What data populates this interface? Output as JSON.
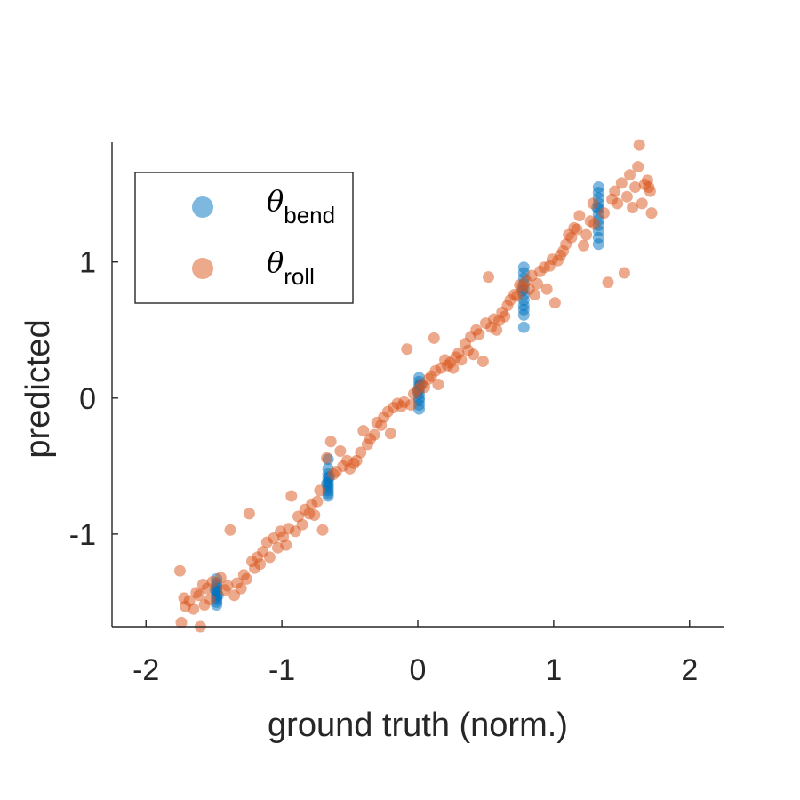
{
  "chart_data": {
    "type": "scatter",
    "title": "",
    "xlabel": "ground truth (norm.)",
    "ylabel": "predicted",
    "xlim": [
      -2.25,
      2.25
    ],
    "ylim": [
      -1.68,
      1.88
    ],
    "xticks": [
      -2,
      -1,
      0,
      1,
      2
    ],
    "xtick_labels": [
      "-2",
      "-1",
      "0",
      "1",
      "2"
    ],
    "yticks": [
      -1,
      0,
      1
    ],
    "ytick_labels": [
      "-1",
      "0",
      "1"
    ],
    "grid": false,
    "legend_position": "top-left",
    "series": [
      {
        "name": "θbend",
        "symbol": "θ",
        "subscript": "bend",
        "color": "#0072BD",
        "points": [
          [
            -1.48,
            -1.33
          ],
          [
            -1.48,
            -1.36
          ],
          [
            -1.48,
            -1.38
          ],
          [
            -1.48,
            -1.4
          ],
          [
            -1.48,
            -1.42
          ],
          [
            -1.48,
            -1.44
          ],
          [
            -1.48,
            -1.46
          ],
          [
            -1.48,
            -1.48
          ],
          [
            -1.48,
            -1.5
          ],
          [
            -1.48,
            -1.52
          ],
          [
            -1.49,
            -1.41
          ],
          [
            -1.47,
            -1.45
          ],
          [
            -0.66,
            -0.45
          ],
          [
            -0.66,
            -0.52
          ],
          [
            -0.66,
            -0.56
          ],
          [
            -0.66,
            -0.59
          ],
          [
            -0.66,
            -0.62
          ],
          [
            -0.66,
            -0.64
          ],
          [
            -0.66,
            -0.66
          ],
          [
            -0.66,
            -0.68
          ],
          [
            -0.66,
            -0.7
          ],
          [
            -0.66,
            -0.72
          ],
          [
            -0.65,
            -0.58
          ],
          [
            -0.67,
            -0.63
          ],
          [
            0.01,
            0.15
          ],
          [
            0.01,
            0.12
          ],
          [
            0.01,
            0.09
          ],
          [
            0.01,
            0.06
          ],
          [
            0.01,
            0.03
          ],
          [
            0.01,
            0.0
          ],
          [
            0.01,
            -0.02
          ],
          [
            0.01,
            -0.05
          ],
          [
            0.01,
            -0.08
          ],
          [
            0.0,
            0.05
          ],
          [
            0.02,
            0.1
          ],
          [
            0.78,
            0.96
          ],
          [
            0.78,
            0.92
          ],
          [
            0.78,
            0.88
          ],
          [
            0.78,
            0.84
          ],
          [
            0.78,
            0.8
          ],
          [
            0.78,
            0.76
          ],
          [
            0.78,
            0.72
          ],
          [
            0.78,
            0.68
          ],
          [
            0.78,
            0.65
          ],
          [
            0.78,
            0.61
          ],
          [
            0.78,
            0.52
          ],
          [
            0.77,
            0.79
          ],
          [
            1.33,
            1.55
          ],
          [
            1.33,
            1.51
          ],
          [
            1.33,
            1.47
          ],
          [
            1.33,
            1.43
          ],
          [
            1.33,
            1.39
          ],
          [
            1.33,
            1.35
          ],
          [
            1.33,
            1.31
          ],
          [
            1.33,
            1.27
          ],
          [
            1.33,
            1.23
          ],
          [
            1.33,
            1.18
          ],
          [
            1.33,
            1.13
          ],
          [
            1.32,
            1.4
          ]
        ]
      },
      {
        "name": "θroll",
        "symbol": "θ",
        "subscript": "roll",
        "color": "#D95319",
        "points": [
          [
            -1.75,
            -1.27
          ],
          [
            -1.74,
            -1.65
          ],
          [
            -1.72,
            -1.47
          ],
          [
            -1.71,
            -1.53
          ],
          [
            -1.68,
            -1.49
          ],
          [
            -1.65,
            -1.55
          ],
          [
            -1.63,
            -1.43
          ],
          [
            -1.61,
            -1.45
          ],
          [
            -1.6,
            -1.68
          ],
          [
            -1.58,
            -1.37
          ],
          [
            -1.57,
            -1.52
          ],
          [
            -1.55,
            -1.4
          ],
          [
            -1.53,
            -1.48
          ],
          [
            -1.51,
            -1.35
          ],
          [
            -1.45,
            -1.32
          ],
          [
            -1.42,
            -1.41
          ],
          [
            -1.4,
            -1.38
          ],
          [
            -1.38,
            -0.97
          ],
          [
            -1.35,
            -1.45
          ],
          [
            -1.33,
            -1.36
          ],
          [
            -1.3,
            -1.4
          ],
          [
            -1.28,
            -1.3
          ],
          [
            -1.26,
            -1.33
          ],
          [
            -1.24,
            -0.85
          ],
          [
            -1.22,
            -1.2
          ],
          [
            -1.2,
            -1.25
          ],
          [
            -1.18,
            -1.17
          ],
          [
            -1.16,
            -1.22
          ],
          [
            -1.14,
            -1.13
          ],
          [
            -1.11,
            -1.06
          ],
          [
            -1.09,
            -1.17
          ],
          [
            -1.06,
            -1.03
          ],
          [
            -1.03,
            -1.1
          ],
          [
            -1.01,
            -0.98
          ],
          [
            -0.99,
            -1.02
          ],
          [
            -0.97,
            -1.08
          ],
          [
            -0.95,
            -0.96
          ],
          [
            -0.93,
            -0.72
          ],
          [
            -0.9,
            -0.98
          ],
          [
            -0.88,
            -0.87
          ],
          [
            -0.85,
            -0.93
          ],
          [
            -0.83,
            -0.82
          ],
          [
            -0.8,
            -0.85
          ],
          [
            -0.78,
            -0.78
          ],
          [
            -0.76,
            -0.86
          ],
          [
            -0.74,
            -0.76
          ],
          [
            -0.72,
            -0.68
          ],
          [
            -0.7,
            -0.97
          ],
          [
            -0.67,
            -0.44
          ],
          [
            -0.64,
            -0.32
          ],
          [
            -0.62,
            -0.56
          ],
          [
            -0.6,
            -0.54
          ],
          [
            -0.57,
            -0.39
          ],
          [
            -0.55,
            -0.5
          ],
          [
            -0.52,
            -0.46
          ],
          [
            -0.5,
            -0.52
          ],
          [
            -0.47,
            -0.48
          ],
          [
            -0.45,
            -0.46
          ],
          [
            -0.42,
            -0.4
          ],
          [
            -0.4,
            -0.24
          ],
          [
            -0.37,
            -0.34
          ],
          [
            -0.35,
            -0.3
          ],
          [
            -0.32,
            -0.27
          ],
          [
            -0.3,
            -0.18
          ],
          [
            -0.27,
            -0.2
          ],
          [
            -0.25,
            -0.14
          ],
          [
            -0.22,
            -0.1
          ],
          [
            -0.2,
            -0.26
          ],
          [
            -0.18,
            -0.07
          ],
          [
            -0.15,
            -0.04
          ],
          [
            -0.12,
            -0.06
          ],
          [
            -0.1,
            -0.03
          ],
          [
            -0.08,
            0.36
          ],
          [
            -0.05,
            -0.05
          ],
          [
            -0.03,
            0.03
          ],
          [
            0.0,
            0.06
          ],
          [
            0.03,
            0.1
          ],
          [
            0.05,
            0.08
          ],
          [
            0.08,
            0.14
          ],
          [
            0.1,
            0.16
          ],
          [
            0.12,
            0.44
          ],
          [
            0.13,
            0.2
          ],
          [
            0.15,
            0.1
          ],
          [
            0.17,
            0.22
          ],
          [
            0.2,
            0.28
          ],
          [
            0.22,
            0.24
          ],
          [
            0.24,
            0.26
          ],
          [
            0.26,
            0.22
          ],
          [
            0.28,
            0.3
          ],
          [
            0.3,
            0.33
          ],
          [
            0.32,
            0.28
          ],
          [
            0.35,
            0.4
          ],
          [
            0.37,
            0.35
          ],
          [
            0.39,
            0.45
          ],
          [
            0.41,
            0.32
          ],
          [
            0.43,
            0.5
          ],
          [
            0.45,
            0.47
          ],
          [
            0.48,
            0.27
          ],
          [
            0.5,
            0.55
          ],
          [
            0.52,
            0.89
          ],
          [
            0.54,
            0.52
          ],
          [
            0.56,
            0.58
          ],
          [
            0.58,
            0.5
          ],
          [
            0.6,
            0.57
          ],
          [
            0.62,
            0.63
          ],
          [
            0.64,
            0.6
          ],
          [
            0.66,
            0.68
          ],
          [
            0.68,
            0.72
          ],
          [
            0.71,
            0.76
          ],
          [
            0.73,
            0.75
          ],
          [
            0.75,
            0.83
          ],
          [
            0.77,
            0.82
          ],
          [
            0.8,
            0.86
          ],
          [
            0.82,
            0.8
          ],
          [
            0.84,
            0.9
          ],
          [
            0.86,
            0.76
          ],
          [
            0.88,
            0.84
          ],
          [
            0.9,
            0.93
          ],
          [
            0.93,
            0.96
          ],
          [
            0.95,
            0.8
          ],
          [
            0.97,
            0.97
          ],
          [
            0.99,
            1.02
          ],
          [
            1.01,
            0.7
          ],
          [
            1.03,
            1.01
          ],
          [
            1.05,
            1.05
          ],
          [
            1.07,
            1.08
          ],
          [
            1.09,
            1.13
          ],
          [
            1.11,
            1.2
          ],
          [
            1.13,
            1.18
          ],
          [
            1.15,
            1.25
          ],
          [
            1.17,
            1.24
          ],
          [
            1.19,
            1.34
          ],
          [
            1.22,
            1.12
          ],
          [
            1.24,
            1.2
          ],
          [
            1.27,
            1.3
          ],
          [
            1.29,
            1.43
          ],
          [
            1.3,
            1.28
          ],
          [
            1.37,
            1.36
          ],
          [
            1.4,
            0.85
          ],
          [
            1.43,
            1.46
          ],
          [
            1.45,
            1.52
          ],
          [
            1.47,
            1.43
          ],
          [
            1.5,
            1.58
          ],
          [
            1.52,
            0.92
          ],
          [
            1.54,
            1.48
          ],
          [
            1.56,
            1.64
          ],
          [
            1.58,
            1.4
          ],
          [
            1.6,
            1.55
          ],
          [
            1.62,
            1.7
          ],
          [
            1.63,
            1.86
          ],
          [
            1.65,
            1.43
          ],
          [
            1.67,
            1.57
          ],
          [
            1.69,
            1.6
          ],
          [
            1.71,
            1.52
          ],
          [
            1.72,
            1.36
          ],
          [
            1.7,
            1.55
          ]
        ]
      }
    ]
  }
}
